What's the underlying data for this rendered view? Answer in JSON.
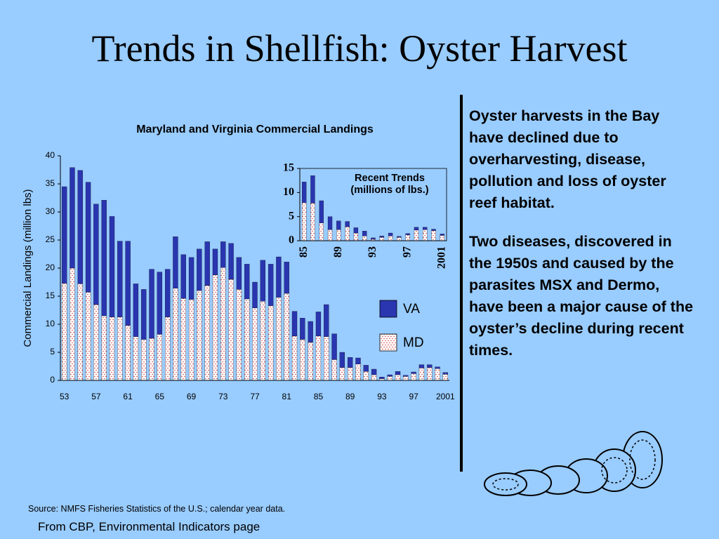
{
  "header": {
    "title": "Trends in Shellfish:  Oyster Harvest"
  },
  "chart_data": [
    {
      "type": "bar",
      "stacked": true,
      "title": "Maryland and Virginia Commercial Landings",
      "y_label": "Commercial Landings (million lbs)",
      "categories": [
        "53",
        null,
        null,
        null,
        "57",
        null,
        null,
        null,
        "61",
        null,
        null,
        null,
        "65",
        null,
        null,
        null,
        "69",
        null,
        null,
        null,
        "73",
        null,
        null,
        null,
        "77",
        null,
        null,
        null,
        "81",
        null,
        null,
        null,
        "85",
        null,
        null,
        null,
        "89",
        null,
        null,
        null,
        "93",
        null,
        null,
        null,
        "97",
        null,
        null,
        null,
        "2001"
      ],
      "series": [
        {
          "name": "MD",
          "color": "#ffffff",
          "values": [
            17.3,
            20,
            17.2,
            15.7,
            13.5,
            11.5,
            11.3,
            11.3,
            9.8,
            7.8,
            7.3,
            7.5,
            8.2,
            11.3,
            16.4,
            14.6,
            14.4,
            16,
            16.9,
            18.8,
            20.1,
            18,
            16.2,
            14.5,
            12.9,
            14.1,
            13.3,
            14.8,
            15.5,
            7.9,
            7.3,
            6.8,
            7.9,
            7.8,
            3.7,
            2.3,
            2.3,
            2.9,
            1.6,
            1,
            0.3,
            0.7,
            1,
            0.7,
            1.2,
            2.2,
            2.3,
            2.1,
            1.1
          ]
        },
        {
          "name": "VA",
          "color": "#2a35b0",
          "values": [
            17.2,
            17.9,
            20.2,
            19.6,
            17.9,
            20.6,
            17.9,
            13.5,
            15,
            9.4,
            8.9,
            12.3,
            11.1,
            8.5,
            9.2,
            7.8,
            7.5,
            7.4,
            7.8,
            4.6,
            4.6,
            6.4,
            5.7,
            6.2,
            4.6,
            7.3,
            7.4,
            7.2,
            5.6,
            4.4,
            3.8,
            3.7,
            4.3,
            5.7,
            4.6,
            2.7,
            1.8,
            1.1,
            1.1,
            1,
            0.3,
            0.3,
            0.6,
            0.2,
            0.3,
            0.6,
            0.5,
            0.3,
            0.3
          ]
        }
      ],
      "ylim": [
        0,
        40
      ],
      "yticks": [
        0,
        5,
        10,
        15,
        20,
        25,
        30,
        35,
        40
      ],
      "legend": "center right"
    },
    {
      "type": "bar",
      "stacked": true,
      "title": "Recent Trends (millions of lbs.)",
      "categories": [
        "85",
        null,
        null,
        null,
        "89",
        null,
        null,
        null,
        "93",
        null,
        null,
        null,
        "97",
        null,
        null,
        null,
        "2001"
      ],
      "series": [
        {
          "name": "MD",
          "color": "#ffffff",
          "values": [
            7.9,
            7.8,
            3.7,
            2.3,
            2.3,
            2.9,
            1.6,
            1,
            0.3,
            0.7,
            1,
            0.7,
            1.2,
            2.2,
            2.3,
            2.1,
            1.1
          ]
        },
        {
          "name": "VA",
          "color": "#2a35b0",
          "values": [
            4.3,
            5.7,
            4.6,
            2.7,
            1.8,
            1.1,
            1.1,
            1,
            0.3,
            0.3,
            0.6,
            0.2,
            0.3,
            0.6,
            0.5,
            0.3,
            0.3
          ]
        }
      ],
      "ylim": [
        0,
        15
      ],
      "yticks": [
        0,
        5,
        10,
        15
      ]
    }
  ],
  "sidebar": {
    "paragraphs": [
      "Oyster harvests in the Bay have declined due to overharvesting, disease, pollution and loss of oyster reef habitat.",
      "Two diseases, discovered in the 1950s and caused by the parasites MSX and Dermo, have been a major cause of the oyster’s decline during recent times."
    ]
  },
  "footer": {
    "source": "Source:  NMFS Fisheries Statistics of the U.S.; calendar year data.",
    "credit": "From CBP, Environmental Indicators page"
  }
}
